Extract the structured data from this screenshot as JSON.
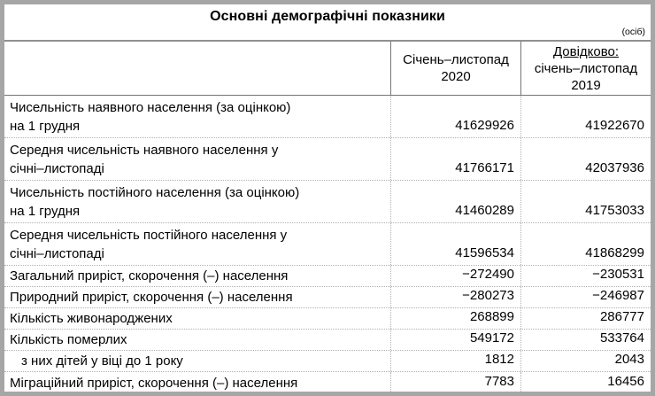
{
  "title": "Основні демографічні показники",
  "unit_note": "(осіб)",
  "table": {
    "header": {
      "col_2020": {
        "line1": "Січень–листопад",
        "line2": "2020"
      },
      "col_2019": {
        "line1": "Довідково:",
        "line2": "січень–листопад",
        "line3": "2019"
      }
    },
    "rows": [
      {
        "label": "Чисельність наявного населення (за оцінкою)",
        "label2": "на 1 грудня",
        "v2020": "41629926",
        "v2019": "41922670"
      },
      {
        "label": "Середня чисельність наявного населення у",
        "label2": "січні–листопаді",
        "v2020": "41766171",
        "v2019": "42037936"
      },
      {
        "label": "Чисельність постійного населення  (за оцінкою)",
        "label2": "на 1 грудня",
        "v2020": "41460289",
        "v2019": "41753033"
      },
      {
        "label": "Середня чисельність постійного населення у",
        "label2": "січні–листопаді",
        "v2020": "41596534",
        "v2019": "41868299"
      },
      {
        "label": "Загальний приріст, скорочення (–) населення",
        "v2020": "−272490",
        "v2019": "−230531"
      },
      {
        "label": "Природний приріст, скорочення (–) населення",
        "v2020": "−280273",
        "v2019": "−246987"
      },
      {
        "label": "Кількість живонароджених",
        "v2020": "268899",
        "v2019": "286777"
      },
      {
        "label": "Кількість померлих",
        "v2020": "549172",
        "v2019": "533764"
      },
      {
        "label": "з них дітей у віці до 1 року",
        "v2020": "1812",
        "v2019": "2043"
      },
      {
        "label": "Міграційний приріст, скорочення (–) населення",
        "v2020": "7783",
        "v2019": "16456"
      }
    ]
  },
  "colors": {
    "frame_border": "#a6a6a6",
    "solid_line": "#757575",
    "dotted_line": "#b0b0b0",
    "text": "#000000"
  }
}
